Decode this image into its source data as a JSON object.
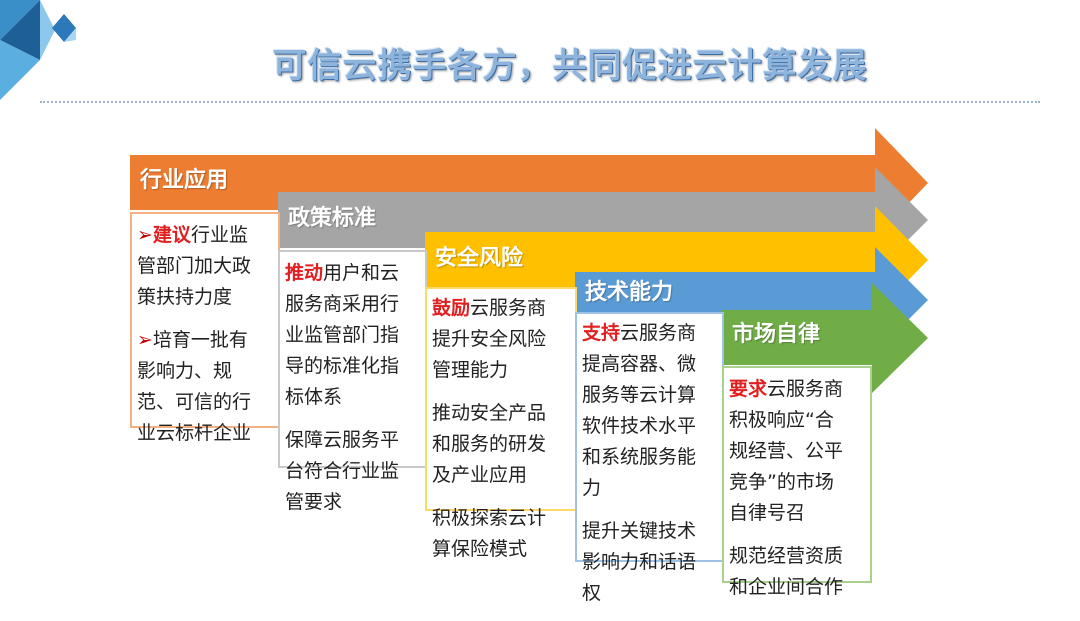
{
  "title": "可信云携手各方，共同促进云计算发展",
  "colors": {
    "orange": "#ed7d31",
    "gray": "#a5a5a5",
    "yellow": "#ffc000",
    "blue": "#5b9bd5",
    "green": "#70ad47",
    "highlight": "#e02020"
  },
  "columns": [
    {
      "label": "行业应用",
      "paras": [
        {
          "bullet": "➢",
          "highlight": "建议",
          "lines": [
            "行业监",
            "管部门加大政",
            "策扶持力度"
          ]
        },
        {
          "bullet": "➢",
          "highlight": "",
          "lines": [
            "培育一批有",
            "影响力、规",
            "范、可信的行",
            "业云标杆企业"
          ]
        }
      ]
    },
    {
      "label": "政策标准",
      "paras": [
        {
          "bullet": "",
          "highlight": "推动",
          "lines": [
            "用户和云",
            "服务商采用行",
            "业监管部门指",
            "导的标准化指",
            "标体系"
          ]
        },
        {
          "bullet": "",
          "highlight": "",
          "lines": [
            "保障云服务平",
            "台符合行业监",
            "管要求"
          ]
        }
      ]
    },
    {
      "label": "安全风险",
      "paras": [
        {
          "bullet": "",
          "highlight": "鼓励",
          "lines": [
            "云服务商",
            "提升安全风险",
            "管理能力"
          ]
        },
        {
          "bullet": "",
          "highlight": "",
          "lines": [
            "推动安全产品",
            "和服务的研发",
            "及产业应用"
          ]
        },
        {
          "bullet": "",
          "highlight": "",
          "lines": [
            "积极探索云计",
            "算保险模式"
          ]
        }
      ]
    },
    {
      "label": "技术能力",
      "paras": [
        {
          "bullet": "",
          "highlight": "支持",
          "lines": [
            "云服务商",
            "提高容器、微",
            "服务等云计算",
            "软件技术水平",
            "和系统服务能",
            "力"
          ]
        },
        {
          "bullet": "",
          "highlight": "",
          "lines": [
            "提升关键技术",
            "影响力和话语",
            "权"
          ]
        }
      ]
    },
    {
      "label": "市场自律",
      "paras": [
        {
          "bullet": "",
          "highlight": "要求",
          "lines": [
            "云服务商",
            "积极响应“合",
            "规经营、公平",
            "竞争”的市场",
            "自律号召"
          ]
        },
        {
          "bullet": "",
          "highlight": "",
          "lines": [
            "规范经营资质",
            "和企业间合作"
          ]
        }
      ]
    }
  ]
}
